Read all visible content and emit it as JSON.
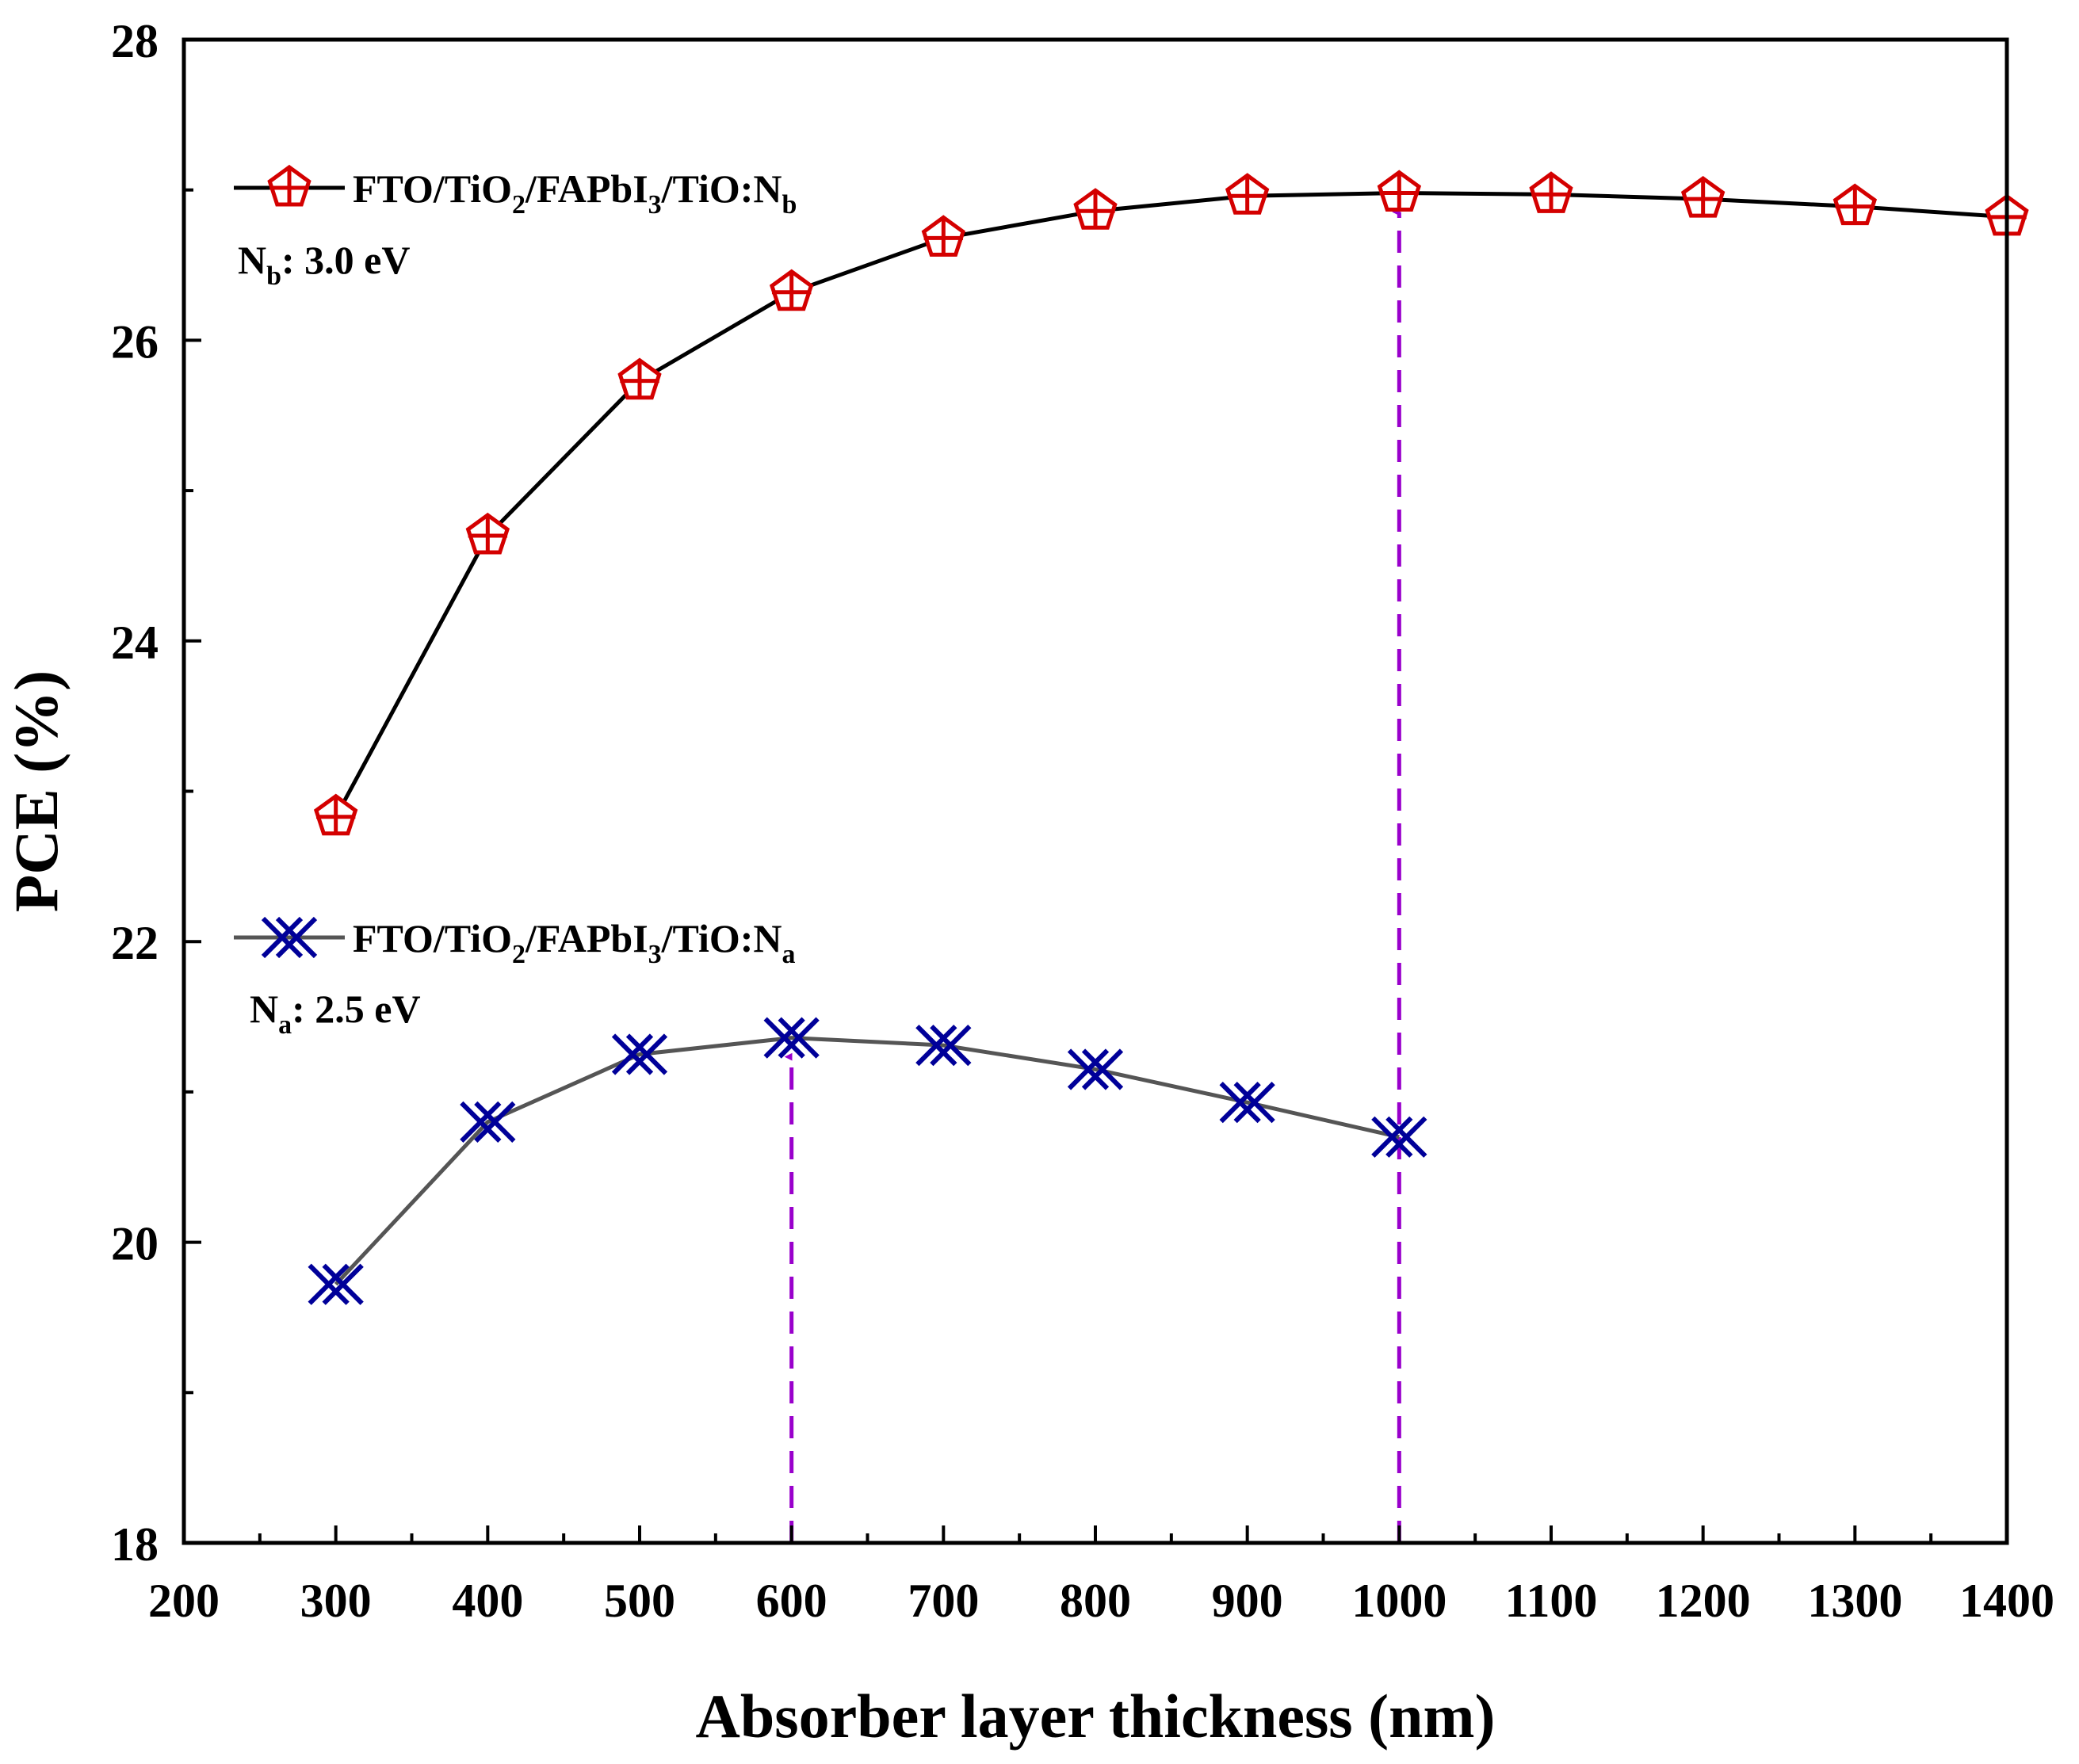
{
  "chart_data": {
    "type": "line",
    "xlabel": "Absorber layer thickness (nm)",
    "ylabel": "PCE (%)",
    "xlim": [
      200,
      1400
    ],
    "ylim": [
      18,
      28
    ],
    "x_ticks": [
      200,
      300,
      400,
      500,
      600,
      700,
      800,
      900,
      1000,
      1100,
      1200,
      1300,
      1400
    ],
    "y_ticks": [
      18,
      20,
      22,
      24,
      26,
      28
    ],
    "grid": false,
    "series": [
      {
        "name": "FTO/TiO2/FAPbI3/TiO:Nb",
        "legend": {
          "base": "FTO/TiO",
          "sub1": "2",
          "mid": "/FAPbI",
          "sub2": "3",
          "end": "/TiO:N",
          "sub3": "b"
        },
        "annotation": {
          "base": "N",
          "sub": "b",
          "rest": ": 3.0 eV"
        },
        "marker": "pentagon-cross",
        "color": "#d40000",
        "line_color": "#000000",
        "x": [
          300,
          400,
          500,
          600,
          700,
          800,
          900,
          1000,
          1100,
          1200,
          1300,
          1400
        ],
        "y": [
          22.83,
          24.7,
          25.73,
          26.32,
          26.68,
          26.86,
          26.96,
          26.98,
          26.97,
          26.94,
          26.89,
          26.82
        ]
      },
      {
        "name": "FTO/TiO2/FAPbI3/TiO:Na",
        "legend": {
          "base": "FTO/TiO",
          "sub1": "2",
          "mid": "/FAPbI",
          "sub2": "3",
          "end": "/TiO:N",
          "sub3": "a"
        },
        "annotation": {
          "base": "N",
          "sub": "a",
          "rest": ": 2.5 eV"
        },
        "marker": "x-cross",
        "color": "#000099",
        "line_color": "#555555",
        "x": [
          300,
          400,
          500,
          600,
          700,
          800,
          900,
          1000
        ],
        "y": [
          19.72,
          20.8,
          21.25,
          21.36,
          21.31,
          21.15,
          20.93,
          20.7
        ]
      }
    ],
    "arrows": [
      {
        "x": 600,
        "y_from": 18,
        "y_to": 21.36,
        "color": "#9900cc"
      },
      {
        "x": 1000,
        "y_from": 18,
        "y_to": 26.98,
        "color": "#9900cc"
      }
    ]
  }
}
